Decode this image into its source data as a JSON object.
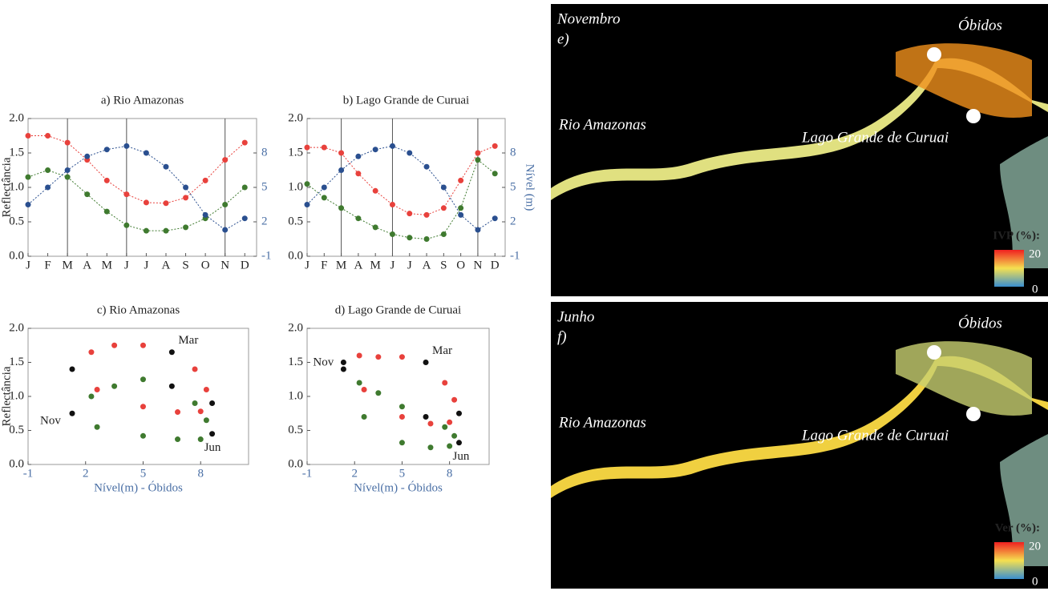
{
  "chart_data": [
    {
      "type": "line",
      "title": "a) Rio Amazonas",
      "ylabel": "Reflectância",
      "x": [
        1,
        2,
        3,
        4,
        5,
        6,
        7,
        8,
        9,
        10,
        11,
        12
      ],
      "xlim": [
        1,
        12.6
      ],
      "xticks": [
        {
          "value": 1,
          "label": "J"
        },
        {
          "value": 2,
          "label": "F"
        },
        {
          "value": 3,
          "label": "M"
        },
        {
          "value": 4,
          "label": "A"
        },
        {
          "value": 5,
          "label": "M"
        },
        {
          "value": 6,
          "label": "J"
        },
        {
          "value": 7,
          "label": "J"
        },
        {
          "value": 8,
          "label": "A"
        },
        {
          "value": 9,
          "label": "S"
        },
        {
          "value": 10,
          "label": "O"
        },
        {
          "value": 11,
          "label": "N"
        },
        {
          "value": 12,
          "label": "D"
        }
      ],
      "ylim": [
        0,
        2
      ],
      "yticks": [
        {
          "value": 0,
          "label": "0.0"
        },
        {
          "value": 0.5,
          "label": "0.5"
        },
        {
          "value": 1,
          "label": "1.0"
        },
        {
          "value": 1.5,
          "label": "1.5"
        },
        {
          "value": 2,
          "label": "2.0"
        }
      ],
      "y2lim": [
        -1,
        11
      ],
      "y2ticks": [
        -1,
        2,
        5,
        8
      ],
      "vlines": [
        3,
        6,
        11
      ],
      "series": [
        {
          "color": "#e8413c",
          "values": [
            1.75,
            1.75,
            1.65,
            1.4,
            1.1,
            0.9,
            0.78,
            0.77,
            0.85,
            1.1,
            1.4,
            1.65
          ]
        },
        {
          "color": "#3f7a2f",
          "values": [
            1.15,
            1.25,
            1.15,
            0.9,
            0.65,
            0.45,
            0.37,
            0.37,
            0.42,
            0.55,
            0.75,
            1.0
          ]
        },
        {
          "color": "#2a4f8f",
          "axis": "y2",
          "values": [
            3.5,
            5,
            6.5,
            7.7,
            8.3,
            8.6,
            8,
            6.8,
            5,
            2.6,
            1.3,
            2.3
          ]
        }
      ]
    },
    {
      "type": "line",
      "title": "b) Lago Grande de Curuai",
      "ylabel2": "Nível (m)",
      "x": [
        1,
        2,
        3,
        4,
        5,
        6,
        7,
        8,
        9,
        10,
        11,
        12
      ],
      "xlim": [
        1,
        12.6
      ],
      "xticks": [
        {
          "value": 1,
          "label": "J"
        },
        {
          "value": 2,
          "label": "F"
        },
        {
          "value": 3,
          "label": "M"
        },
        {
          "value": 4,
          "label": "A"
        },
        {
          "value": 5,
          "label": "M"
        },
        {
          "value": 6,
          "label": "J"
        },
        {
          "value": 7,
          "label": "J"
        },
        {
          "value": 8,
          "label": "A"
        },
        {
          "value": 9,
          "label": "S"
        },
        {
          "value": 10,
          "label": "O"
        },
        {
          "value": 11,
          "label": "N"
        },
        {
          "value": 12,
          "label": "D"
        }
      ],
      "ylim": [
        0,
        2
      ],
      "yticks": [
        {
          "value": 0,
          "label": "0.0"
        },
        {
          "value": 0.5,
          "label": "0.5"
        },
        {
          "value": 1,
          "label": "1.0"
        },
        {
          "value": 1.5,
          "label": "1.5"
        },
        {
          "value": 2,
          "label": "2.0"
        }
      ],
      "y2lim": [
        -1,
        11
      ],
      "y2ticks": [
        -1,
        2,
        5,
        8
      ],
      "vlines": [
        3,
        6,
        11
      ],
      "series": [
        {
          "color": "#e8413c",
          "values": [
            1.58,
            1.58,
            1.5,
            1.2,
            0.95,
            0.75,
            0.62,
            0.6,
            0.7,
            1.1,
            1.5,
            1.6
          ]
        },
        {
          "color": "#3f7a2f",
          "values": [
            1.05,
            0.85,
            0.7,
            0.55,
            0.42,
            0.32,
            0.27,
            0.25,
            0.32,
            0.7,
            1.4,
            1.2
          ]
        },
        {
          "color": "#2a4f8f",
          "axis": "y2",
          "values": [
            3.5,
            5,
            6.5,
            7.7,
            8.3,
            8.6,
            8,
            6.8,
            5,
            2.6,
            1.3,
            2.3
          ]
        }
      ]
    },
    {
      "type": "scatter",
      "title": "c) Rio Amazonas",
      "ylabel": "Reflectância",
      "xlabel": "Nível(m) - Óbidos",
      "xlim": [
        -1,
        10.5
      ],
      "xticks": [
        -1,
        2,
        5,
        8
      ],
      "ylim": [
        0,
        2
      ],
      "yticks": [
        {
          "value": 0,
          "label": "0.0"
        },
        {
          "value": 0.5,
          "label": "0.5"
        },
        {
          "value": 1,
          "label": "1.0"
        },
        {
          "value": 1.5,
          "label": "1.5"
        },
        {
          "value": 2,
          "label": "2.0"
        }
      ],
      "annotations": [
        "Mar",
        "Nov",
        "Jun"
      ],
      "series": [
        {
          "color": "#e8413c",
          "x": [
            3.5,
            5,
            6.5,
            7.7,
            8.3,
            8.6,
            8,
            6.8,
            5,
            2.6,
            1.3,
            2.3
          ],
          "values": [
            1.75,
            1.75,
            1.65,
            1.4,
            1.1,
            0.9,
            0.78,
            0.77,
            0.85,
            1.1,
            1.4,
            1.65
          ]
        },
        {
          "color": "#3f7a2f",
          "x": [
            3.5,
            5,
            6.5,
            7.7,
            8.3,
            8.6,
            8,
            6.8,
            5,
            2.6,
            1.3,
            2.3
          ],
          "values": [
            1.15,
            1.25,
            1.15,
            0.9,
            0.65,
            0.45,
            0.37,
            0.37,
            0.42,
            0.55,
            0.75,
            1.0
          ]
        }
      ]
    },
    {
      "type": "scatter",
      "title": "d) Lago Grande de Curuai",
      "xlabel": "Nível(m) - Óbidos",
      "xlim": [
        -1,
        10.5
      ],
      "xticks": [
        -1,
        2,
        5,
        8
      ],
      "ylim": [
        0,
        2
      ],
      "yticks": [
        {
          "value": 0,
          "label": "0.0"
        },
        {
          "value": 0.5,
          "label": "0.5"
        },
        {
          "value": 1,
          "label": "1.0"
        },
        {
          "value": 1.5,
          "label": "1.5"
        },
        {
          "value": 2,
          "label": "2.0"
        }
      ],
      "annotations": [
        "Mar",
        "Nov",
        "Jun"
      ],
      "series": [
        {
          "color": "#e8413c",
          "x": [
            3.5,
            5,
            6.5,
            7.7,
            8.3,
            8.6,
            8,
            6.8,
            5,
            2.6,
            1.3,
            2.3
          ],
          "values": [
            1.58,
            1.58,
            1.5,
            1.2,
            0.95,
            0.75,
            0.62,
            0.6,
            0.7,
            1.1,
            1.5,
            1.6
          ]
        },
        {
          "color": "#3f7a2f",
          "x": [
            3.5,
            5,
            6.5,
            7.7,
            8.3,
            8.6,
            8,
            6.8,
            5,
            2.6,
            1.3,
            2.3
          ],
          "values": [
            1.05,
            0.85,
            0.7,
            0.55,
            0.42,
            0.32,
            0.27,
            0.25,
            0.32,
            0.7,
            1.4,
            1.2
          ]
        }
      ]
    }
  ],
  "maps": [
    {
      "month": "Novembro",
      "letter": "e)",
      "places": [
        "Óbidos",
        "Rio Amazonas",
        "Lago Grande de Curuai"
      ],
      "legend": {
        "title": "IVP (%):",
        "max": 20,
        "min": 0
      }
    },
    {
      "month": "Junho",
      "letter": "f)",
      "places": [
        "Óbidos",
        "Rio Amazonas",
        "Lago Grande de Curuai"
      ],
      "legend": {
        "title": "Ver (%):",
        "max": 20,
        "min": 0
      }
    }
  ]
}
